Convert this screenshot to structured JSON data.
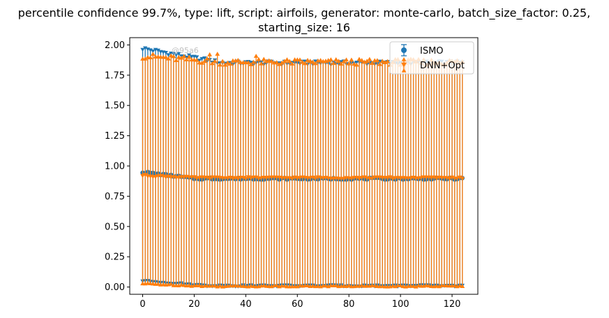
{
  "chart_data": {
    "type": "scatter",
    "title_line1": "percentile confidence 99.7%, type: lift, script: airfoils, generator: monte-carlo, batch_size_factor: 0.25,",
    "title_line2": "starting_size: 16",
    "xlabel": "",
    "ylabel": "",
    "xlim": [
      -5,
      130
    ],
    "ylim": [
      -0.06,
      2.06
    ],
    "x_ticks": [
      0,
      20,
      40,
      60,
      80,
      100,
      120
    ],
    "x_tick_labels": [
      "0",
      "20",
      "40",
      "60",
      "80",
      "100",
      "120"
    ],
    "y_ticks": [
      0.0,
      0.25,
      0.5,
      0.75,
      1.0,
      1.25,
      1.5,
      1.75,
      2.0
    ],
    "y_tick_labels": [
      "0.00",
      "0.25",
      "0.50",
      "0.75",
      "1.00",
      "1.25",
      "1.50",
      "1.75",
      "2.00"
    ],
    "grid": false,
    "legend_position": "upper right",
    "watermark": "@95a6",
    "x_range": [
      0,
      124
    ],
    "series": [
      {
        "name": "ISMO",
        "color": "#1f77b4",
        "marker": "circle",
        "errorbar": "caps-down-triangle",
        "mean_start": 0.95,
        "mean_end": 0.895,
        "upper_start": 1.97,
        "upper_end": 1.85,
        "lower_start": 0.05,
        "lower_end": 0.01,
        "x_max": 124
      },
      {
        "name": "DNN+Opt",
        "color": "#ff7f0e",
        "marker": "triangle-down",
        "errorbar": "caps-up-triangle",
        "mean_start": 0.92,
        "mean_end": 0.9,
        "upper_start": 1.91,
        "upper_end": 1.86,
        "lower_start": 0.03,
        "lower_end": 0.01,
        "x_max": 124
      }
    ]
  }
}
